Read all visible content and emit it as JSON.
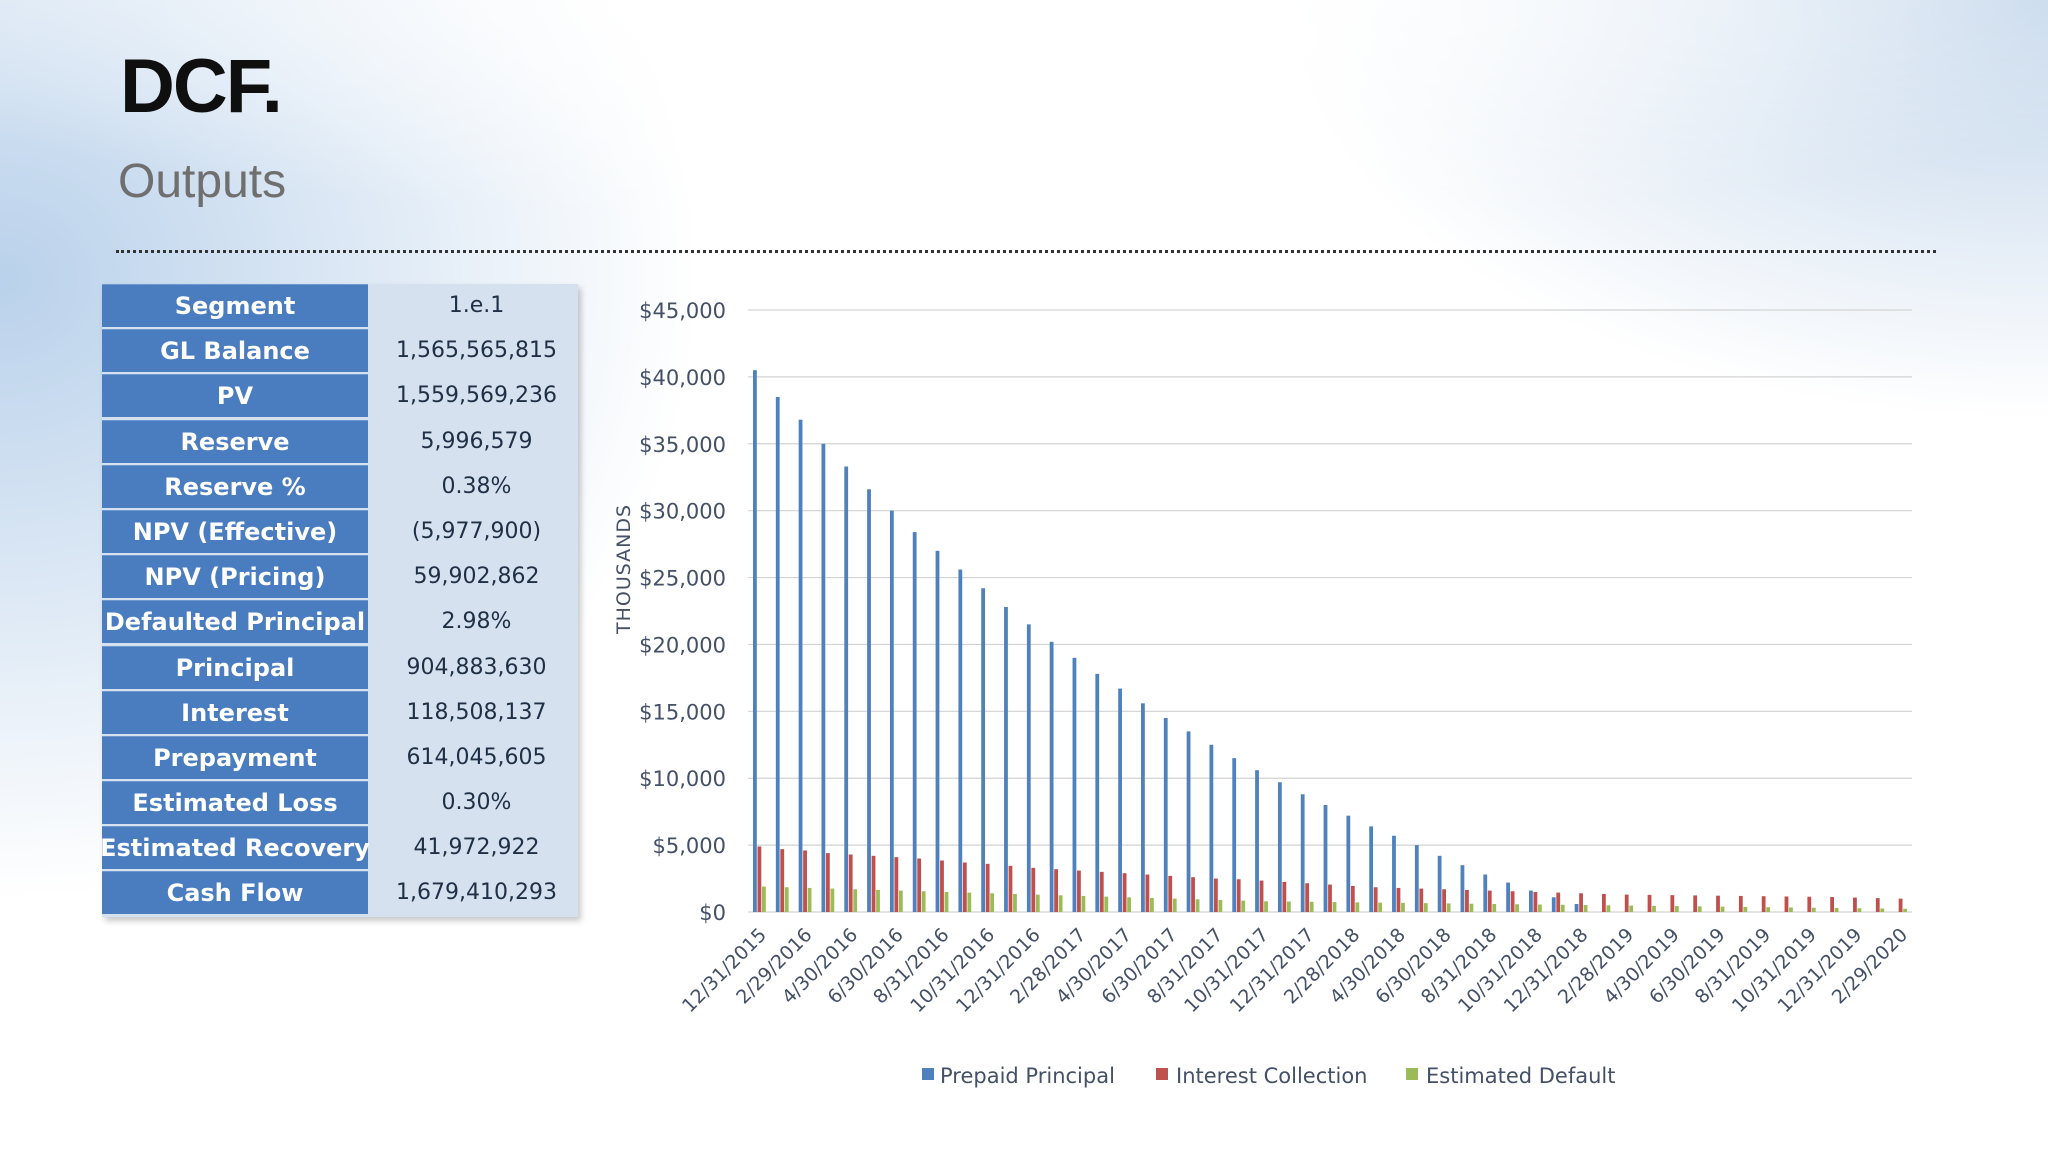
{
  "slide": {
    "title": "DCF.",
    "subtitle": "Outputs"
  },
  "table": {
    "rows": [
      {
        "label": "Segment",
        "value": "1.e.1"
      },
      {
        "label": "GL Balance",
        "value": "1,565,565,815"
      },
      {
        "label": "PV",
        "value": "1,559,569,236"
      },
      {
        "label": "Reserve",
        "value": "5,996,579"
      },
      {
        "label": "Reserve %",
        "value": "0.38%"
      },
      {
        "label": "NPV (Effective)",
        "value": "(5,977,900)"
      },
      {
        "label": "NPV (Pricing)",
        "value": "59,902,862"
      },
      {
        "label": "Defaulted Principal",
        "value": "2.98%"
      },
      {
        "label": "Principal",
        "value": "904,883,630"
      },
      {
        "label": "Interest",
        "value": "118,508,137"
      },
      {
        "label": "Prepayment",
        "value": "614,045,605"
      },
      {
        "label": "Estimated Loss",
        "value": "0.30%"
      },
      {
        "label": "Estimated Recovery",
        "value": "41,972,922"
      },
      {
        "label": "Cash Flow",
        "value": "1,679,410,293"
      }
    ]
  },
  "colors": {
    "table_label_bg": "#4a7cc0",
    "table_value_bg": "#d5e1ee",
    "prepaid": "#4f81bd",
    "interest": "#c0504d",
    "default": "#9bbb59"
  },
  "chart_data": {
    "type": "bar",
    "ylabel": "THOUSANDS",
    "ylim": [
      0,
      45000
    ],
    "yticks": [
      "$0",
      "$5,000",
      "$10,000",
      "$15,000",
      "$20,000",
      "$25,000",
      "$30,000",
      "$35,000",
      "$40,000",
      "$45,000"
    ],
    "ytick_values": [
      0,
      5000,
      10000,
      15000,
      20000,
      25000,
      30000,
      35000,
      40000,
      45000
    ],
    "grid": true,
    "legend_position": "bottom",
    "categories": [
      "12/31/2015",
      "1/31/2016",
      "2/29/2016",
      "3/31/2016",
      "4/30/2016",
      "5/31/2016",
      "6/30/2016",
      "7/31/2016",
      "8/31/2016",
      "9/30/2016",
      "10/31/2016",
      "11/30/2016",
      "12/31/2016",
      "1/31/2017",
      "2/28/2017",
      "3/31/2017",
      "4/30/2017",
      "5/31/2017",
      "6/30/2017",
      "7/31/2017",
      "8/31/2017",
      "9/30/2017",
      "10/31/2017",
      "11/30/2017",
      "12/31/2017",
      "1/31/2018",
      "2/28/2018",
      "3/31/2018",
      "4/30/2018",
      "5/31/2018",
      "6/30/2018",
      "7/31/2018",
      "8/31/2018",
      "9/30/2018",
      "10/31/2018",
      "11/30/2018",
      "12/31/2018",
      "1/31/2019",
      "2/28/2019",
      "3/31/2019",
      "4/30/2019",
      "5/31/2019",
      "6/30/2019",
      "7/31/2019",
      "8/31/2019",
      "9/30/2019",
      "10/31/2019",
      "11/30/2019",
      "12/31/2019",
      "1/31/2020",
      "2/29/2020"
    ],
    "x_tick_labels": [
      "12/31/2015",
      "2/29/2016",
      "4/30/2016",
      "6/30/2016",
      "8/31/2016",
      "10/31/2016",
      "12/31/2016",
      "2/28/2017",
      "4/30/2017",
      "6/30/2017",
      "8/31/2017",
      "10/31/2017",
      "12/31/2017",
      "2/28/2018",
      "4/30/2018",
      "6/30/2018",
      "8/31/2018",
      "10/31/2018",
      "12/31/2018",
      "2/28/2019",
      "4/30/2019",
      "6/30/2019",
      "8/31/2019",
      "10/31/2019",
      "12/31/2019",
      "2/29/2020"
    ],
    "series": [
      {
        "name": "Prepaid Principal",
        "color": "#4f81bd",
        "values": [
          40500,
          38500,
          36800,
          35000,
          33300,
          31600,
          30000,
          28400,
          27000,
          25600,
          24200,
          22800,
          21500,
          20200,
          19000,
          17800,
          16700,
          15600,
          14500,
          13500,
          12500,
          11500,
          10600,
          9700,
          8800,
          8000,
          7200,
          6400,
          5700,
          5000,
          4200,
          3500,
          2800,
          2200,
          1600,
          1100,
          600,
          0,
          0,
          0,
          0,
          0,
          0,
          0,
          0,
          0,
          0,
          0,
          0,
          0,
          0
        ]
      },
      {
        "name": "Interest Collection",
        "color": "#c0504d",
        "values": [
          4900,
          4700,
          4600,
          4400,
          4300,
          4200,
          4100,
          4000,
          3850,
          3700,
          3600,
          3450,
          3300,
          3200,
          3100,
          3000,
          2900,
          2800,
          2700,
          2600,
          2500,
          2450,
          2350,
          2250,
          2150,
          2050,
          1950,
          1850,
          1800,
          1750,
          1700,
          1650,
          1600,
          1550,
          1500,
          1450,
          1400,
          1350,
          1300,
          1280,
          1260,
          1240,
          1220,
          1200,
          1180,
          1160,
          1140,
          1120,
          1080,
          1040,
          1000
        ]
      },
      {
        "name": "Estimated Default",
        "color": "#9bbb59",
        "values": [
          1900,
          1850,
          1800,
          1750,
          1700,
          1650,
          1600,
          1550,
          1500,
          1450,
          1400,
          1350,
          1300,
          1250,
          1200,
          1150,
          1100,
          1050,
          1000,
          950,
          900,
          850,
          800,
          780,
          760,
          740,
          720,
          700,
          680,
          660,
          640,
          620,
          600,
          580,
          560,
          540,
          520,
          500,
          480,
          460,
          440,
          420,
          400,
          380,
          360,
          340,
          320,
          300,
          280,
          260,
          240
        ]
      }
    ]
  }
}
